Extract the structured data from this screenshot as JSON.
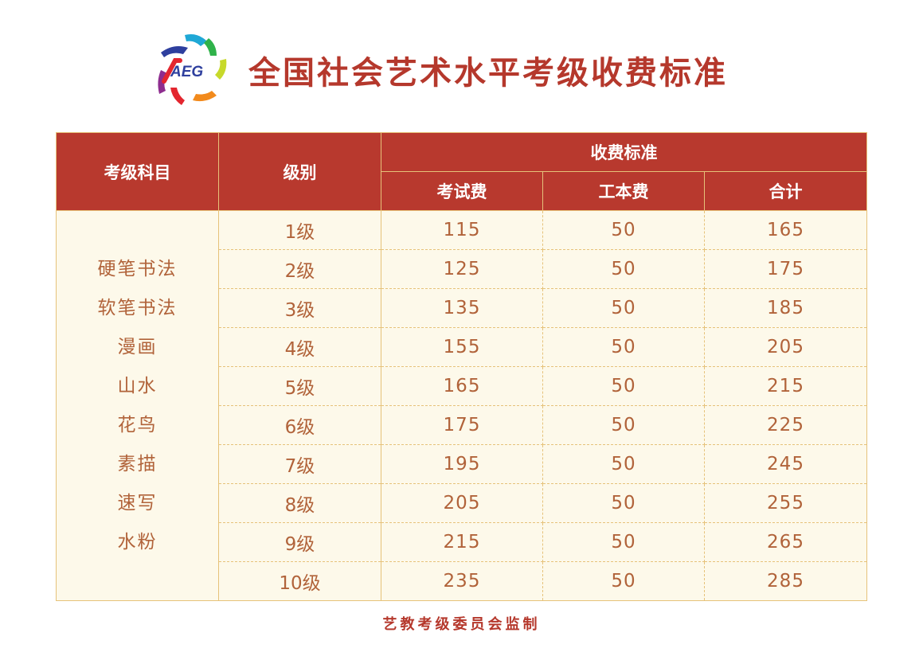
{
  "title": "全国社会艺术水平考级收费标准",
  "logo": {
    "text": "AEG"
  },
  "colors": {
    "header_red": "#b8392e",
    "title_red": "#b5382c",
    "cell_bg": "#fdf9ea",
    "cell_text": "#b1633a",
    "border_gold": "#e6c27a"
  },
  "table": {
    "headers": {
      "subject": "考级科目",
      "level": "级别",
      "fee_standard": "收费标准",
      "exam_fee": "考试费",
      "material_fee": "工本费",
      "total": "合计"
    },
    "subjects": [
      "硬笔书法",
      "软笔书法",
      "漫画",
      "山水",
      "花鸟",
      "素描",
      "速写",
      "水粉"
    ],
    "rows": [
      {
        "level": "1级",
        "exam_fee": "115",
        "material_fee": "50",
        "total": "165"
      },
      {
        "level": "2级",
        "exam_fee": "125",
        "material_fee": "50",
        "total": "175"
      },
      {
        "level": "3级",
        "exam_fee": "135",
        "material_fee": "50",
        "total": "185"
      },
      {
        "level": "4级",
        "exam_fee": "155",
        "material_fee": "50",
        "total": "205"
      },
      {
        "level": "5级",
        "exam_fee": "165",
        "material_fee": "50",
        "total": "215"
      },
      {
        "level": "6级",
        "exam_fee": "175",
        "material_fee": "50",
        "total": "225"
      },
      {
        "level": "7级",
        "exam_fee": "195",
        "material_fee": "50",
        "total": "245"
      },
      {
        "level": "8级",
        "exam_fee": "205",
        "material_fee": "50",
        "total": "255"
      },
      {
        "level": "9级",
        "exam_fee": "215",
        "material_fee": "50",
        "total": "265"
      },
      {
        "level": "10级",
        "exam_fee": "235",
        "material_fee": "50",
        "total": "285"
      }
    ]
  },
  "footer": "艺教考级委员会监制"
}
